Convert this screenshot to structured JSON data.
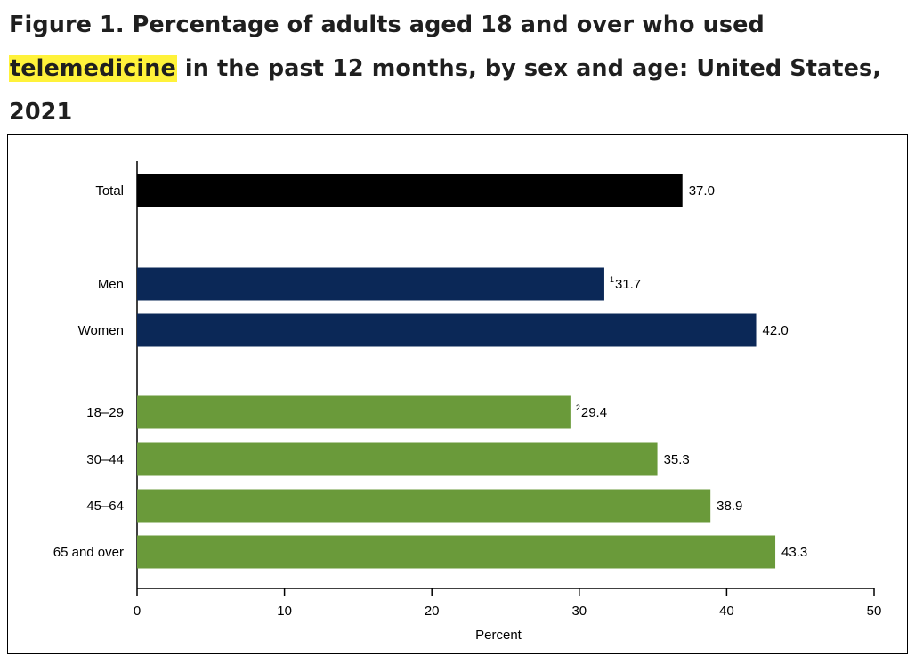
{
  "title": {
    "prefix": "Figure 1. Percentage of adults aged 18 and over who used ",
    "highlight": "telemedicine",
    "suffix": " in the past 12 months, by sex and age: United States, 2021"
  },
  "colors": {
    "total": "#000000",
    "sex": "#0b2857",
    "age": "#6a9a3a"
  },
  "chart_data": {
    "type": "bar",
    "orientation": "horizontal",
    "categories": [
      "Total",
      "Men",
      "Women",
      "18–29",
      "30–44",
      "45–64",
      "65 and over"
    ],
    "values": [
      37.0,
      31.7,
      42.0,
      29.4,
      35.3,
      38.9,
      43.3
    ],
    "value_labels": [
      "37.0",
      "31.7",
      "42.0",
      "29.4",
      "35.3",
      "38.9",
      "43.3"
    ],
    "footnote_marks": [
      "",
      "1",
      "",
      "2",
      "",
      "",
      ""
    ],
    "groups": [
      "total",
      "sex",
      "sex",
      "age",
      "age",
      "age",
      "age"
    ],
    "xlabel": "Percent",
    "xlim": [
      0,
      50
    ],
    "xticks": [
      0,
      10,
      20,
      30,
      40,
      50
    ],
    "grid": false
  }
}
